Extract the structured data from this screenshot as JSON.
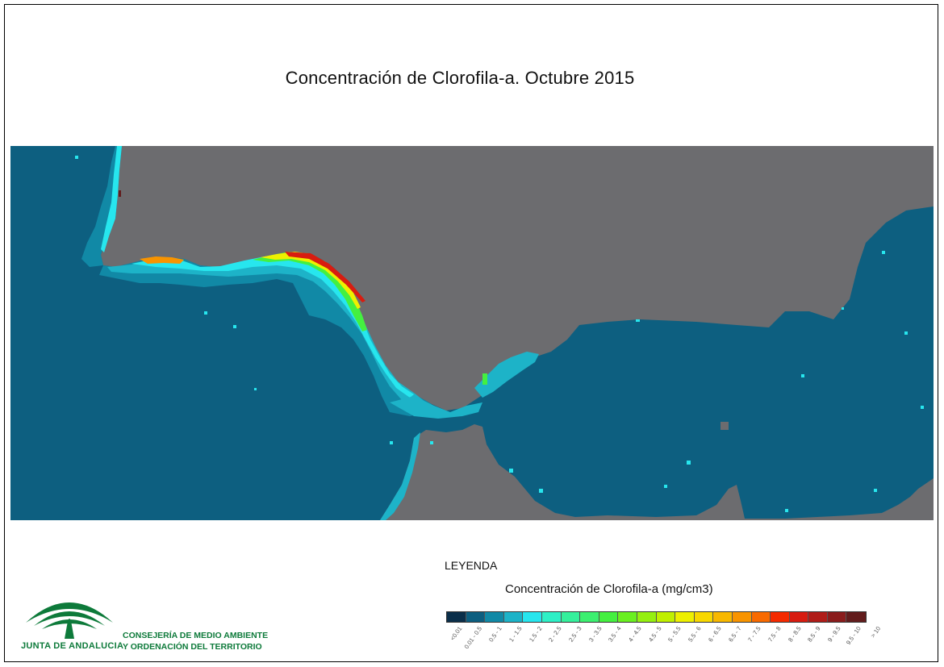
{
  "title": "Concentración de Clorofila-a. Octubre 2015",
  "legend": {
    "heading": "LEYENDA",
    "subtitle": "Concentración de Clorofila-a (mg/cm3)",
    "classes": [
      {
        "label": "<0.01",
        "color": "#0b2f4a"
      },
      {
        "label": "0.01 - 0.5",
        "color": "#0d5f80"
      },
      {
        "label": "0.5 - 1",
        "color": "#1189a6"
      },
      {
        "label": "1 - 1.5",
        "color": "#1db3c8"
      },
      {
        "label": "1.5 - 2",
        "color": "#27e6ee"
      },
      {
        "label": "2 - 2.5",
        "color": "#2ef0c6"
      },
      {
        "label": "2.5 - 3",
        "color": "#35f09c"
      },
      {
        "label": "3 - 3.5",
        "color": "#3cf070"
      },
      {
        "label": "3.5 - 4",
        "color": "#44f040"
      },
      {
        "label": "4 - 4.5",
        "color": "#6af020"
      },
      {
        "label": "4.5 - 5",
        "color": "#95f010"
      },
      {
        "label": "5 - 5.5",
        "color": "#c0f000"
      },
      {
        "label": "5.5 - 6",
        "color": "#eef000"
      },
      {
        "label": "6 - 6.5",
        "color": "#f8d800"
      },
      {
        "label": "6.5 - 7",
        "color": "#f8b800"
      },
      {
        "label": "7 - 7.5",
        "color": "#f89400"
      },
      {
        "label": "7.5 - 8",
        "color": "#f86a00"
      },
      {
        "label": "8 - 8.5",
        "color": "#f52a00"
      },
      {
        "label": "8.5 - 9",
        "color": "#d81c10"
      },
      {
        "label": "9 - 9.5",
        "color": "#b01c18"
      },
      {
        "label": "9.5 - 10",
        "color": "#8a1c1c"
      },
      {
        "label": "> 10",
        "color": "#621c1c"
      }
    ]
  },
  "map_colors": {
    "land": "#6c6c6f",
    "sea": "#0d5f80",
    "no_data": "#6c6c6f"
  },
  "logo": {
    "org_name": "JUNTA DE ANDALUCIA",
    "department_line1": "CONSEJERÍA DE MEDIO AMBIENTE",
    "department_line2": "Y ORDENACIÓN DEL TERRITORIO",
    "color": "#0d7a3a"
  }
}
